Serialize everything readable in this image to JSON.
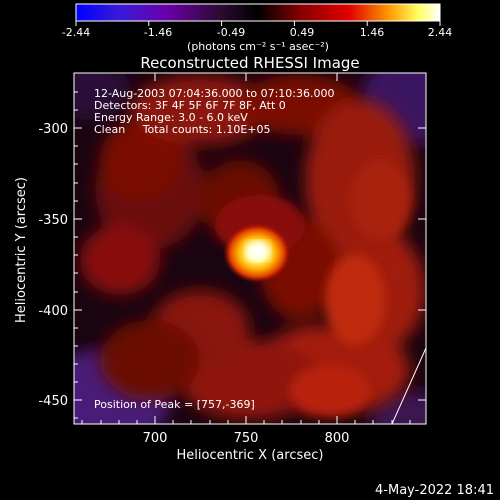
{
  "colorbar": {
    "ticks": [
      "-2.44",
      "-1.46",
      "-0.49",
      "0.49",
      "1.46",
      "2.44"
    ],
    "units": "(photons cm⁻² s⁻¹ asec⁻²)",
    "range": [
      -2.44,
      2.44
    ],
    "colors": [
      "#0000ff",
      "#6a00c8",
      "#3a0a3a",
      "#000000",
      "#8a0000",
      "#e00000",
      "#ff9a00",
      "#ffff80",
      "#ffffff"
    ]
  },
  "title": "Reconstructed RHESSI Image",
  "info": {
    "line1": "12-Aug-2003 07:04:36.000 to 07:10:36.000",
    "line2": "Detectors: 3F 4F 5F 6F 7F 8F, Att 0",
    "line3": "Energy Range: 3.0 - 6.0 keV",
    "line4": "Clean     Total counts: 1.10E+05"
  },
  "peak_label": "Position of Peak = [757,-369]",
  "axes": {
    "xlabel": "Heliocentric X (arcsec)",
    "ylabel": "Heliocentric Y (arcsec)",
    "xticks": [
      "700",
      "750",
      "800"
    ],
    "yticks": [
      "-300",
      "-350",
      "-400",
      "-450"
    ],
    "xlim": [
      662,
      848
    ],
    "ylim": [
      -463,
      -278
    ]
  },
  "peak": {
    "x": 757,
    "y": -369
  },
  "timestamp": "4-May-2022 18:41"
}
